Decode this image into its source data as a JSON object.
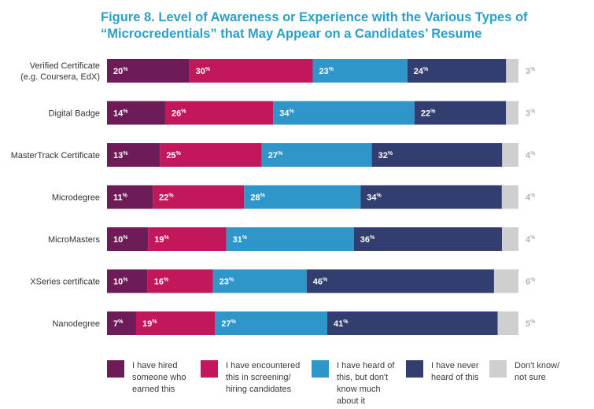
{
  "title_line1": "Figure 8. Level of Awareness or Experience with the Various Types of",
  "title_line2": "“Microcredentials” that May Appear on a Candidates’ Resume",
  "chart_data": {
    "type": "bar",
    "orientation": "horizontal",
    "stacked": true,
    "title": "Figure 8. Level of Awareness or Experience with the Various Types of “Microcredentials” that May Appear on a Candidates’ Resume",
    "categories": [
      [
        "Verified Certificate",
        "(e.g. Coursera, EdX)"
      ],
      [
        "Digital Badge"
      ],
      [
        "MasterTrack Certificate"
      ],
      [
        "Microdegree"
      ],
      [
        "MicroMasters"
      ],
      [
        "XSeries certificate"
      ],
      [
        "Nanodegree"
      ]
    ],
    "value_suffix": "%",
    "series": [
      {
        "name": "I have hired someone who earned this",
        "color": "#6e1c58",
        "values": [
          20,
          14,
          13,
          11,
          10,
          10,
          7
        ]
      },
      {
        "name": "I have encountered this in screening/ hiring candidates",
        "color": "#c2185b",
        "values": [
          30,
          26,
          25,
          22,
          19,
          16,
          19
        ]
      },
      {
        "name": "I have heard of this, but don't know much about it",
        "color": "#2e96c9",
        "values": [
          23,
          34,
          27,
          28,
          31,
          23,
          27
        ]
      },
      {
        "name": "I have never heard of this",
        "color": "#323d70",
        "values": [
          24,
          22,
          32,
          34,
          36,
          46,
          41
        ]
      },
      {
        "name": "Don't know/ not sure",
        "color": "#cfcfcf",
        "values": [
          3,
          3,
          4,
          4,
          4,
          6,
          5
        ]
      }
    ],
    "legend_position": "bottom",
    "grid": false
  },
  "legend": [
    {
      "label": "I have hired\nsomeone who\nearned this",
      "color": "#6e1c58"
    },
    {
      "label": "I have encountered\nthis in screening/\nhiring candidates",
      "color": "#c2185b"
    },
    {
      "label": "I have heard of\nthis, but don't\nknow much\nabout it",
      "color": "#2e96c9"
    },
    {
      "label": "I have never\nheard of this",
      "color": "#323d70"
    },
    {
      "label": "Don't know/\nnot sure",
      "color": "#cfcfcf"
    }
  ]
}
